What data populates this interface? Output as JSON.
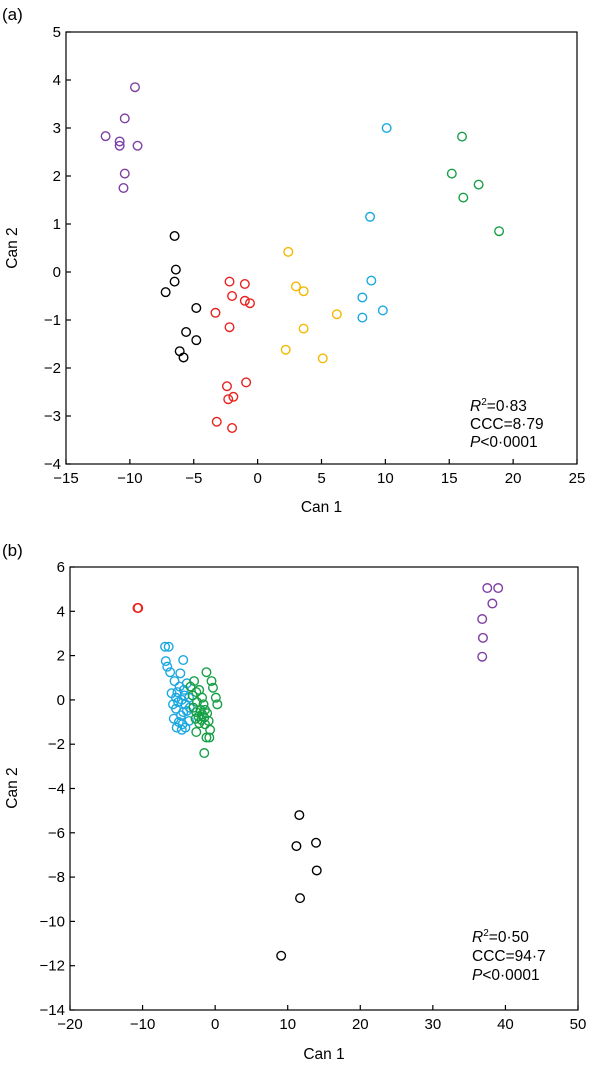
{
  "colors": {
    "black": "#000000",
    "red": "#e8221e",
    "yellow": "#f4b800",
    "cyan": "#1ba8e0",
    "green": "#16a046",
    "purple": "#7e3fa2"
  },
  "chart_data": [
    {
      "type": "scatter",
      "panel_label": "(a)",
      "xlabel": "Can 1",
      "ylabel": "Can 2",
      "xlim": [
        -15,
        25
      ],
      "ylim": [
        -4,
        5
      ],
      "xticks": [
        "−15",
        "−10",
        "−5",
        "0",
        "5",
        "10",
        "15",
        "20",
        "25"
      ],
      "xtick_values": [
        -15,
        -10,
        -5,
        0,
        5,
        10,
        15,
        20,
        25
      ],
      "yticks": [
        "−4",
        "−3",
        "−2",
        "−1",
        "0",
        "1",
        "2",
        "3",
        "4",
        "5"
      ],
      "ytick_values": [
        -4,
        -3,
        -2,
        -1,
        0,
        1,
        2,
        3,
        4,
        5
      ],
      "grid": false,
      "stats": {
        "r2_label": "R",
        "r2_exp": "2",
        "r2_value": "=0·83",
        "ccc": "CCC=8·79",
        "p_label": "P",
        "p_value": "<0·0001"
      },
      "series": [
        {
          "color": "black",
          "points": [
            [
              -6.5,
              0.75
            ],
            [
              -6.4,
              0.05
            ],
            [
              -6.5,
              -0.2
            ],
            [
              -7.2,
              -0.42
            ],
            [
              -4.8,
              -0.75
            ],
            [
              -5.6,
              -1.25
            ],
            [
              -4.8,
              -1.42
            ],
            [
              -6.1,
              -1.65
            ],
            [
              -5.8,
              -1.78
            ]
          ]
        },
        {
          "color": "red",
          "points": [
            [
              -2.2,
              -0.2
            ],
            [
              -1,
              -0.25
            ],
            [
              -2,
              -0.5
            ],
            [
              -1,
              -0.6
            ],
            [
              -0.6,
              -0.65
            ],
            [
              -3.3,
              -0.85
            ],
            [
              -2.2,
              -1.15
            ],
            [
              -0.9,
              -2.3
            ],
            [
              -2.4,
              -2.38
            ],
            [
              -1.9,
              -2.6
            ],
            [
              -2.3,
              -2.65
            ],
            [
              -3.2,
              -3.12
            ],
            [
              -2,
              -3.25
            ]
          ]
        },
        {
          "color": "yellow",
          "points": [
            [
              2.4,
              0.42
            ],
            [
              3,
              -0.3
            ],
            [
              3.6,
              -0.4
            ],
            [
              6.2,
              -0.88
            ],
            [
              3.6,
              -1.18
            ],
            [
              2.2,
              -1.62
            ],
            [
              5.1,
              -1.8
            ]
          ]
        },
        {
          "color": "cyan",
          "points": [
            [
              10.1,
              3
            ],
            [
              8.8,
              1.15
            ],
            [
              8.9,
              -0.18
            ],
            [
              8.2,
              -0.53
            ],
            [
              9.8,
              -0.8
            ],
            [
              8.2,
              -0.95
            ]
          ]
        },
        {
          "color": "green",
          "points": [
            [
              16,
              2.82
            ],
            [
              15.2,
              2.05
            ],
            [
              17.3,
              1.82
            ],
            [
              16.1,
              1.55
            ],
            [
              18.9,
              0.85
            ]
          ]
        },
        {
          "color": "purple",
          "points": [
            [
              -9.6,
              3.85
            ],
            [
              -10.4,
              3.2
            ],
            [
              -11.9,
              2.83
            ],
            [
              -10.8,
              2.72
            ],
            [
              -10.8,
              2.63
            ],
            [
              -9.4,
              2.63
            ],
            [
              -10.4,
              2.05
            ],
            [
              -10.5,
              1.75
            ]
          ]
        }
      ]
    },
    {
      "type": "scatter",
      "panel_label": "(b)",
      "xlabel": "Can 1",
      "ylabel": "Can 2",
      "xlim": [
        -20,
        50
      ],
      "ylim": [
        -14,
        6
      ],
      "xticks": [
        "−20",
        "−10",
        "0",
        "10",
        "20",
        "30",
        "40",
        "50"
      ],
      "xtick_values": [
        -20,
        -10,
        0,
        10,
        20,
        30,
        40,
        50
      ],
      "yticks": [
        "−14",
        "−12",
        "−10",
        "−8",
        "−6",
        "−4",
        "−2",
        "0",
        "2",
        "4",
        "6"
      ],
      "ytick_values": [
        -14,
        -12,
        -10,
        -8,
        -6,
        -4,
        -2,
        0,
        2,
        4,
        6
      ],
      "grid": false,
      "stats": {
        "r2_label": "R",
        "r2_exp": "2",
        "r2_value": "=0·50",
        "ccc": "CCC=94·7",
        "p_label": "P",
        "p_value": "<0·0001"
      },
      "series": [
        {
          "color": "red",
          "points": [
            [
              -10.7,
              4.15
            ],
            [
              -10.6,
              4.15
            ]
          ]
        },
        {
          "color": "purple",
          "points": [
            [
              37.5,
              5.05
            ],
            [
              39,
              5.05
            ],
            [
              38.2,
              4.35
            ],
            [
              36.8,
              3.65
            ],
            [
              36.9,
              2.8
            ],
            [
              36.8,
              1.95
            ]
          ]
        },
        {
          "color": "black",
          "points": [
            [
              11.6,
              -5.2
            ],
            [
              11.2,
              -6.6
            ],
            [
              13.9,
              -6.45
            ],
            [
              14,
              -7.7
            ],
            [
              11.7,
              -8.95
            ],
            [
              9.1,
              -11.55
            ]
          ]
        },
        {
          "color": "cyan",
          "points": [
            [
              -6.9,
              2.4
            ],
            [
              -6.4,
              2.4
            ],
            [
              -6.8,
              1.75
            ],
            [
              -4.4,
              1.8
            ],
            [
              -6.6,
              1.5
            ],
            [
              -6.2,
              1.25
            ],
            [
              -4.8,
              1.2
            ],
            [
              -5.6,
              0.85
            ],
            [
              -4.9,
              0.6
            ],
            [
              -3.9,
              0.75
            ],
            [
              -6,
              0.3
            ],
            [
              -5.2,
              0.35
            ],
            [
              -4.3,
              0.45
            ],
            [
              -4.2,
              0.2
            ],
            [
              -5.4,
              0.1
            ],
            [
              -4.6,
              0
            ],
            [
              -3.6,
              0.1
            ],
            [
              -5.8,
              -0.2
            ],
            [
              -4.1,
              -0.2
            ],
            [
              -5.4,
              -0.4
            ],
            [
              -4.4,
              -0.55
            ],
            [
              -3.9,
              -0.5
            ],
            [
              -4.7,
              -0.7
            ],
            [
              -5.7,
              -0.85
            ],
            [
              -5,
              -1
            ],
            [
              -4.5,
              -1.1
            ],
            [
              -3.6,
              -0.95
            ],
            [
              -5.3,
              -1.25
            ],
            [
              -4.6,
              -1.35
            ],
            [
              -4.1,
              -1.25
            ],
            [
              -3.5,
              -0.35
            ],
            [
              -5.1,
              -0.1
            ]
          ]
        },
        {
          "color": "green",
          "points": [
            [
              -1.2,
              1.25
            ],
            [
              -2.9,
              0.85
            ],
            [
              -0.5,
              0.85
            ],
            [
              -3.4,
              0.6
            ],
            [
              -2.2,
              0.45
            ],
            [
              -2.6,
              0.35
            ],
            [
              -0.3,
              0.55
            ],
            [
              -3.1,
              0.2
            ],
            [
              -1.8,
              0.1
            ],
            [
              0.1,
              0.1
            ],
            [
              -2.5,
              -0.1
            ],
            [
              -1.6,
              -0.2
            ],
            [
              0.3,
              -0.2
            ],
            [
              -3,
              -0.35
            ],
            [
              -2,
              -0.45
            ],
            [
              -1.4,
              -0.45
            ],
            [
              -2.6,
              -0.55
            ],
            [
              -1.8,
              -0.65
            ],
            [
              -1.1,
              -0.6
            ],
            [
              -2.3,
              -0.75
            ],
            [
              -1.5,
              -0.8
            ],
            [
              -2.7,
              -0.85
            ],
            [
              -1.9,
              -0.9
            ],
            [
              -0.9,
              -0.95
            ],
            [
              -2.2,
              -1.05
            ],
            [
              -1.4,
              -1.1
            ],
            [
              -2.6,
              -1.45
            ],
            [
              -0.7,
              -1.35
            ],
            [
              -1.2,
              -1.7
            ],
            [
              -0.8,
              -1.7
            ],
            [
              -1.5,
              -2.4
            ]
          ]
        }
      ]
    }
  ]
}
